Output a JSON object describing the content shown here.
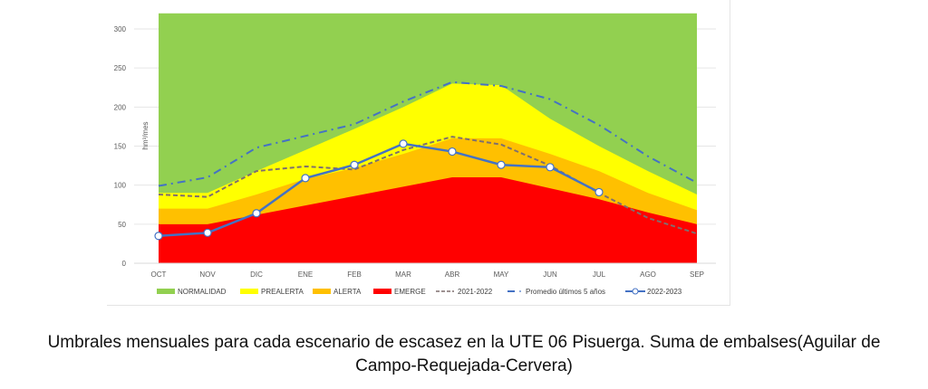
{
  "chart_data": {
    "type": "area",
    "title": "",
    "xlabel": "",
    "ylabel": "hm³/mes",
    "ylim": [
      0,
      320
    ],
    "yticks": [
      0,
      50,
      100,
      150,
      200,
      250,
      300
    ],
    "ytick_labels": [
      "0",
      "50",
      "100",
      "150",
      "200",
      "250",
      "300"
    ],
    "grid": true,
    "legend_position": "bottom",
    "categories": [
      "OCT",
      "NOV",
      "DIC",
      "ENE",
      "FEB",
      "MAR",
      "ABR",
      "MAY",
      "JUN",
      "JUL",
      "AGO",
      "SEP"
    ],
    "bands": [
      {
        "name": "NORMALIDAD",
        "color": "#92d050",
        "upper": [
          320,
          320,
          320,
          320,
          320,
          320,
          320,
          320,
          320,
          320,
          320,
          320
        ]
      },
      {
        "name": "PREALERTA",
        "color": "#ffff00",
        "upper": [
          90,
          90,
          118,
          145,
          172,
          200,
          230,
          228,
          185,
          150,
          118,
          88
        ]
      },
      {
        "name": "ALERTA",
        "color": "#ffc000",
        "upper": [
          70,
          70,
          88,
          108,
          122,
          140,
          160,
          160,
          140,
          118,
          90,
          68
        ]
      },
      {
        "name": "EMERGE",
        "color": "#ff0000",
        "upper": [
          50,
          50,
          62,
          74,
          86,
          98,
          110,
          110,
          96,
          82,
          65,
          50
        ]
      }
    ],
    "series": [
      {
        "name": "2021-2022",
        "style": "dashed",
        "color": "#7f6f6f",
        "values": [
          88,
          85,
          118,
          124,
          120,
          145,
          162,
          152,
          125,
          90,
          58,
          38
        ]
      },
      {
        "name": "Promedio últimos 5 años",
        "style": "dash-dot",
        "color": "#4472c4",
        "values": [
          99,
          110,
          148,
          163,
          178,
          207,
          232,
          227,
          210,
          177,
          137,
          103
        ]
      },
      {
        "name": "2022-2023",
        "style": "solid-markers",
        "color": "#4472c4",
        "values": [
          35,
          39,
          64,
          109,
          126,
          153,
          143,
          126,
          123,
          91,
          null,
          null
        ]
      }
    ]
  },
  "caption": {
    "line1": "Umbrales mensuales para cada escenario de escasez en la UTE 06 Pisuerga. Suma de embalses(Aguilar de",
    "line2": "Campo-Requejada-Cervera)"
  }
}
